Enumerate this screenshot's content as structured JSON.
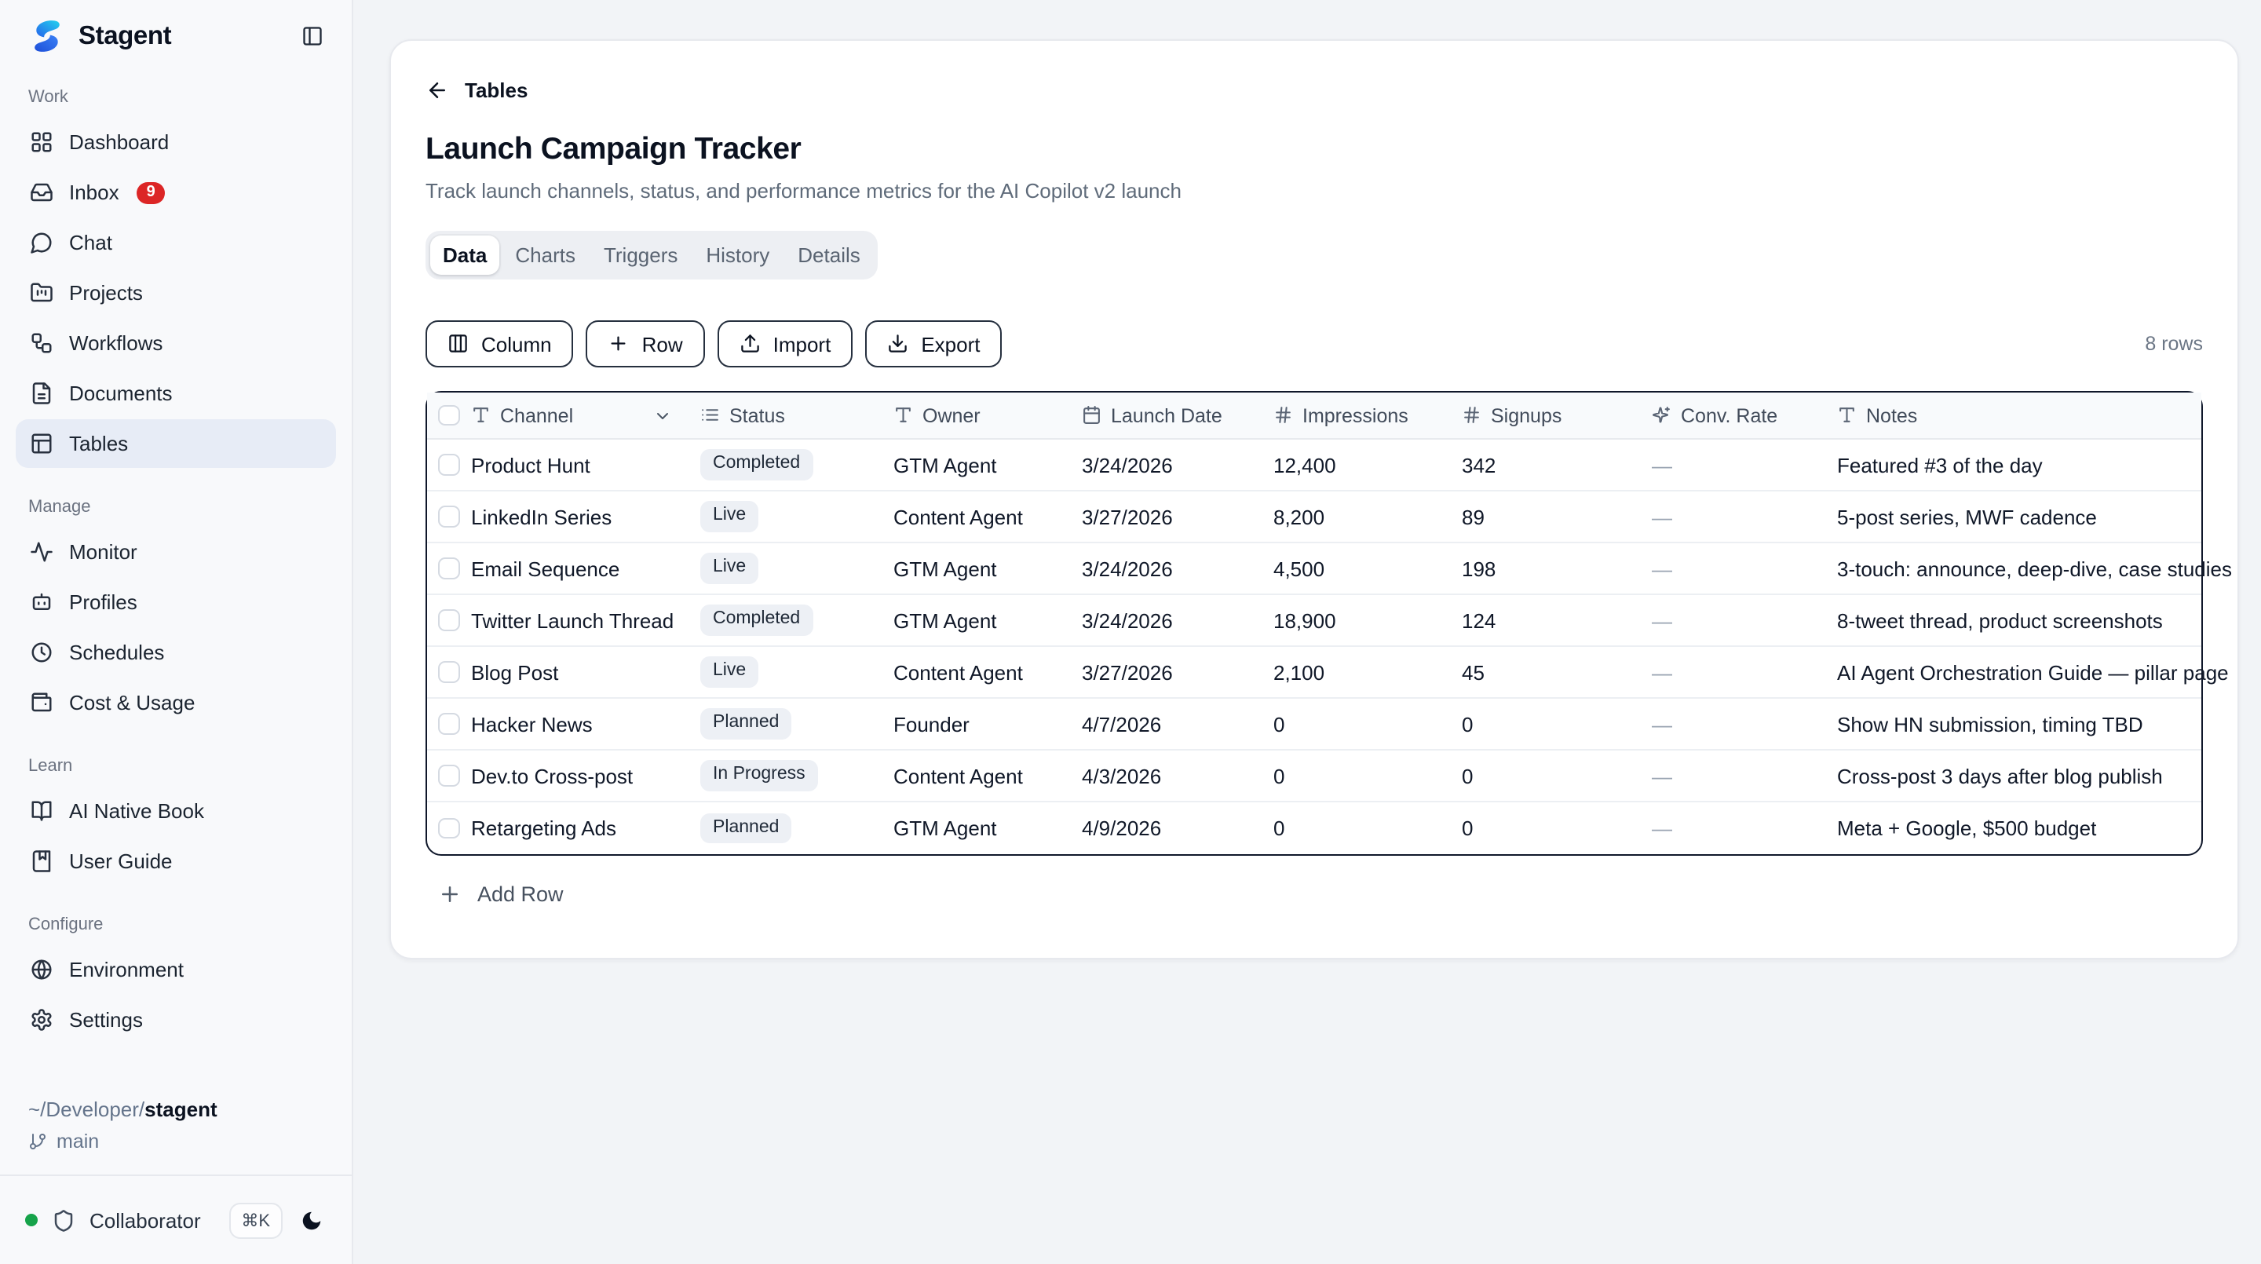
{
  "app": {
    "name": "Stagent"
  },
  "colors": {
    "accent_blue": "#2563eb",
    "logo_cyan": "#22d3ee",
    "badge_red": "#dc2626",
    "online_green": "#16a34a",
    "selected_item_bg": "#e7ecf6",
    "table_border": "#0f172a",
    "pill_bg": "#edf0f5"
  },
  "sidebar": {
    "sections": [
      {
        "label": "Work",
        "items": [
          {
            "icon": "layout-grid",
            "label": "Dashboard"
          },
          {
            "icon": "inbox",
            "label": "Inbox",
            "badge": "9"
          },
          {
            "icon": "message-circle",
            "label": "Chat"
          },
          {
            "icon": "folder-kanban",
            "label": "Projects"
          },
          {
            "icon": "workflow",
            "label": "Workflows"
          },
          {
            "icon": "file-text",
            "label": "Documents"
          },
          {
            "icon": "table",
            "label": "Tables",
            "active": true
          }
        ]
      },
      {
        "label": "Manage",
        "items": [
          {
            "icon": "activity",
            "label": "Monitor"
          },
          {
            "icon": "bot",
            "label": "Profiles"
          },
          {
            "icon": "clock",
            "label": "Schedules"
          },
          {
            "icon": "wallet",
            "label": "Cost & Usage"
          }
        ]
      },
      {
        "label": "Learn",
        "items": [
          {
            "icon": "book-open",
            "label": "AI Native Book"
          },
          {
            "icon": "book-marked",
            "label": "User Guide"
          }
        ]
      },
      {
        "label": "Configure",
        "items": [
          {
            "icon": "globe",
            "label": "Environment"
          },
          {
            "icon": "settings",
            "label": "Settings"
          }
        ]
      }
    ],
    "workspace": {
      "path_prefix": "~/Developer/",
      "path_name": "stagent",
      "branch": "main"
    },
    "footer": {
      "role": "Collaborator",
      "shortcut": "⌘K"
    }
  },
  "main": {
    "breadcrumb": "Tables",
    "title": "Launch Campaign Tracker",
    "subtitle": "Track launch channels, status, and performance metrics for the AI Copilot v2 launch",
    "tabs": [
      {
        "label": "Data",
        "active": true
      },
      {
        "label": "Charts"
      },
      {
        "label": "Triggers"
      },
      {
        "label": "History"
      },
      {
        "label": "Details"
      }
    ],
    "toolbar": {
      "column": "Column",
      "row": "Row",
      "import": "Import",
      "export": "Export",
      "row_count": "8 rows"
    },
    "table": {
      "columns": [
        {
          "icon": "type",
          "label": "Channel"
        },
        {
          "icon": "list",
          "label": "Status"
        },
        {
          "icon": "type",
          "label": "Owner"
        },
        {
          "icon": "calendar",
          "label": "Launch Date"
        },
        {
          "icon": "hash",
          "label": "Impressions"
        },
        {
          "icon": "hash",
          "label": "Signups"
        },
        {
          "icon": "sparkles",
          "label": "Conv. Rate"
        },
        {
          "icon": "type",
          "label": "Notes"
        }
      ],
      "rows": [
        {
          "channel": "Product Hunt",
          "status": "Completed",
          "owner": "GTM Agent",
          "launch_date": "3/24/2026",
          "impressions": "12,400",
          "signups": "342",
          "conv_rate": "—",
          "notes": "Featured #3 of the day"
        },
        {
          "channel": "LinkedIn Series",
          "status": "Live",
          "owner": "Content Agent",
          "launch_date": "3/27/2026",
          "impressions": "8,200",
          "signups": "89",
          "conv_rate": "—",
          "notes": "5-post series, MWF cadence"
        },
        {
          "channel": "Email Sequence",
          "status": "Live",
          "owner": "GTM Agent",
          "launch_date": "3/24/2026",
          "impressions": "4,500",
          "signups": "198",
          "conv_rate": "—",
          "notes": "3-touch: announce, deep-dive, case studies"
        },
        {
          "channel": "Twitter Launch Thread",
          "status": "Completed",
          "owner": "GTM Agent",
          "launch_date": "3/24/2026",
          "impressions": "18,900",
          "signups": "124",
          "conv_rate": "—",
          "notes": "8-tweet thread, product screenshots"
        },
        {
          "channel": "Blog Post",
          "status": "Live",
          "owner": "Content Agent",
          "launch_date": "3/27/2026",
          "impressions": "2,100",
          "signups": "45",
          "conv_rate": "—",
          "notes": "AI Agent Orchestration Guide — pillar page"
        },
        {
          "channel": "Hacker News",
          "status": "Planned",
          "owner": "Founder",
          "launch_date": "4/7/2026",
          "impressions": "0",
          "signups": "0",
          "conv_rate": "—",
          "notes": "Show HN submission, timing TBD"
        },
        {
          "channel": "Dev.to Cross-post",
          "status": "In Progress",
          "owner": "Content Agent",
          "launch_date": "4/3/2026",
          "impressions": "0",
          "signups": "0",
          "conv_rate": "—",
          "notes": "Cross-post 3 days after blog publish"
        },
        {
          "channel": "Retargeting Ads",
          "status": "Planned",
          "owner": "GTM Agent",
          "launch_date": "4/9/2026",
          "impressions": "0",
          "signups": "0",
          "conv_rate": "—",
          "notes": "Meta + Google, $500 budget"
        }
      ]
    },
    "add_row": "Add Row"
  }
}
